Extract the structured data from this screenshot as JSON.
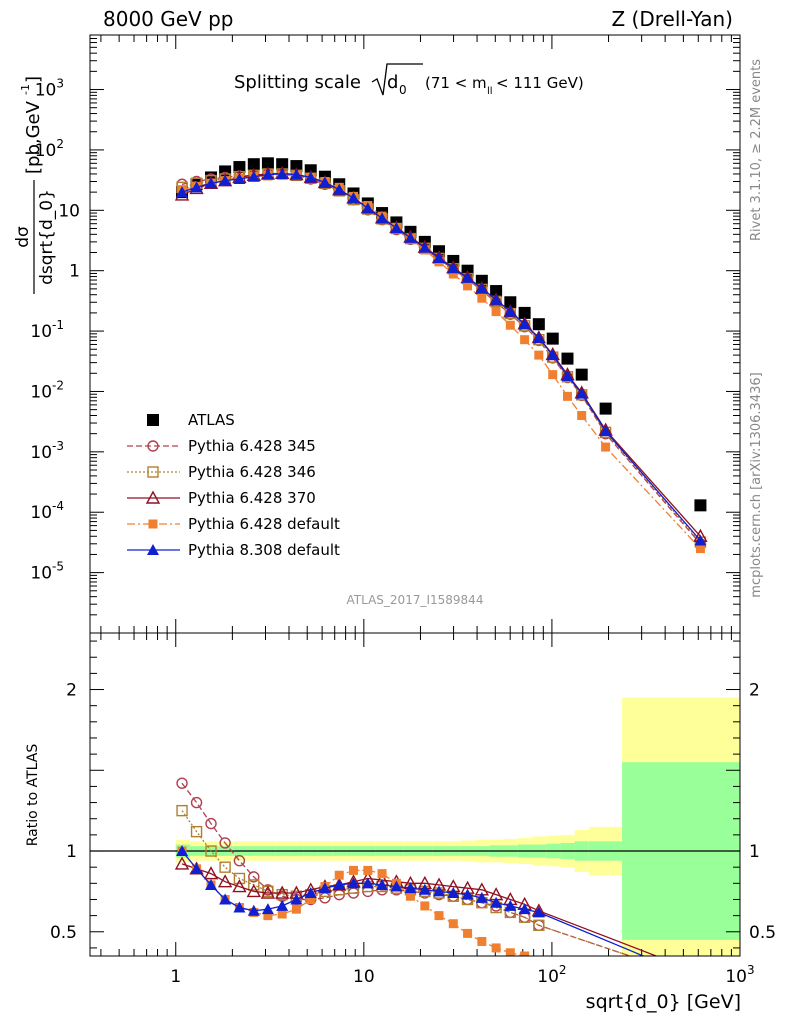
{
  "header": {
    "left": "8000 GeV pp",
    "right": "Z (Drell-Yan)"
  },
  "side_labels": {
    "top": "Rivet 3.1.10, ≥ 2.2M events",
    "bottom": "mcplots.cern.ch [arXiv:1306.3436]"
  },
  "analysis_id": "ATLAS_2017_I1589844",
  "chart_data": [
    {
      "type": "scatter",
      "panel": "main",
      "title": "Splitting scale √d0 (71 < mll < 111 GeV)",
      "title_parts": {
        "main": "Splitting scale",
        "sub": "0",
        "base": "d",
        "range": "(71 < m",
        "range_sub": "ll",
        "range_end": " < 111 GeV)"
      },
      "xlabel": "sqrt{d_0} [GeV]",
      "ylabel": "dσ/dsqrt{d_0} [pb,GeV⁻¹]",
      "ylabel_top": "dσ",
      "ylabel_bottom": "dsqrt{d_0}",
      "ylabel_unit": "[pb,GeV",
      "ylabel_unit_sup": "-1",
      "ylabel_unit_end": "]",
      "x_scale": "log",
      "y_scale": "log",
      "xlim": [
        0.35,
        1000
      ],
      "ylim": [
        1e-06,
        8000
      ],
      "x_ticks": [
        "1",
        "10",
        "10²",
        "10³"
      ],
      "y_ticks": [
        {
          "base": "10",
          "exp": "3",
          "v": 1000
        },
        {
          "base": "10",
          "exp": "2",
          "v": 100
        },
        {
          "base": "10",
          "exp": "",
          "v": 10
        },
        {
          "base": "1",
          "exp": "",
          "v": 1
        },
        {
          "base": "10",
          "exp": "-1",
          "v": 0.1
        },
        {
          "base": "10",
          "exp": "-2",
          "v": 0.01
        },
        {
          "base": "10",
          "exp": "-3",
          "v": 0.001
        },
        {
          "base": "10",
          "exp": "-4",
          "v": 0.0001
        },
        {
          "base": "10",
          "exp": "-5",
          "v": 1e-05
        }
      ],
      "legend_position": "bottom-left",
      "x": [
        1.08,
        1.29,
        1.54,
        1.83,
        2.18,
        2.6,
        3.09,
        3.68,
        4.38,
        5.22,
        6.21,
        7.4,
        8.81,
        10.5,
        12.5,
        14.9,
        17.7,
        21.1,
        25.1,
        29.9,
        35.6,
        42.4,
        50.5,
        60.1,
        71.6,
        85.2,
        101,
        121,
        144,
        193,
        616
      ],
      "series": [
        {
          "name": "ATLAS",
          "color": "#000000",
          "marker": "square-filled",
          "line": "none",
          "values": [
            20,
            27,
            35,
            44,
            52,
            58,
            60,
            58,
            54,
            46,
            36,
            27,
            19,
            13,
            9.0,
            6.3,
            4.4,
            3.0,
            2.1,
            1.45,
            1.0,
            0.68,
            0.46,
            0.3,
            0.2,
            0.13,
            0.075,
            0.035,
            0.019,
            0.0052,
            0.00013
          ]
        },
        {
          "name": "Pythia 6.428 345",
          "color": "#b04050",
          "marker": "circle-open",
          "line": "dashed",
          "values": [
            27,
            30,
            33,
            35,
            37,
            38,
            40,
            40,
            38,
            33,
            27,
            21,
            15,
            10.2,
            7.0,
            4.8,
            3.3,
            2.3,
            1.55,
            1.05,
            0.72,
            0.47,
            0.3,
            0.19,
            0.118,
            0.07,
            0.036,
            0.017,
            0.0086,
            0.002,
            3e-05
          ]
        },
        {
          "name": "Pythia 6.428 346",
          "color": "#b08030",
          "marker": "square-open",
          "line": "dotted",
          "values": [
            24,
            28,
            31,
            33,
            36,
            38,
            40,
            40,
            38,
            34,
            28,
            21,
            15,
            10.5,
            7.2,
            5.0,
            3.4,
            2.35,
            1.6,
            1.08,
            0.74,
            0.49,
            0.31,
            0.195,
            0.122,
            0.072,
            0.037,
            0.0175,
            0.0088,
            0.0021,
            3.2e-05
          ]
        },
        {
          "name": "Pythia 6.428 370",
          "color": "#901020",
          "marker": "triangle-open",
          "line": "solid",
          "values": [
            18,
            23,
            28,
            31,
            35,
            38,
            40,
            41,
            39,
            35,
            29,
            22,
            16,
            11.0,
            7.5,
            5.2,
            3.6,
            2.45,
            1.65,
            1.12,
            0.77,
            0.51,
            0.33,
            0.21,
            0.132,
            0.078,
            0.041,
            0.019,
            0.0095,
            0.0023,
            4e-05
          ]
        },
        {
          "name": "Pythia 6.428 default",
          "color": "#f08030",
          "marker": "square-filled-small",
          "line": "dashdot",
          "values": [
            22,
            25,
            28,
            31,
            34,
            36,
            37,
            38,
            38,
            35,
            30,
            24,
            17,
            12.0,
            8.0,
            5.2,
            3.4,
            2.2,
            1.4,
            0.88,
            0.56,
            0.35,
            0.21,
            0.125,
            0.072,
            0.04,
            0.019,
            0.0083,
            0.004,
            0.0012,
            2.5e-05
          ]
        },
        {
          "name": "Pythia 8.308 default",
          "color": "#1020d0",
          "marker": "triangle-filled",
          "line": "solid",
          "values": [
            20,
            24,
            28,
            31,
            33,
            36,
            39,
            40,
            39,
            35,
            29,
            22,
            16,
            10.8,
            7.4,
            5.1,
            3.5,
            2.4,
            1.62,
            1.1,
            0.76,
            0.51,
            0.33,
            0.21,
            0.13,
            0.077,
            0.04,
            0.018,
            0.0092,
            0.0022,
            3.4e-05
          ]
        }
      ]
    },
    {
      "type": "line",
      "panel": "ratio",
      "ylabel": "Ratio to ATLAS",
      "x_scale": "log",
      "y_scale": "linear",
      "xlim": [
        0.35,
        1000
      ],
      "ylim": [
        0.35,
        2.35
      ],
      "y_ticks": [
        "0.5",
        "1",
        "2"
      ],
      "band_colors": {
        "inner": "#99ff99",
        "outer": "#ffff99"
      },
      "band_edges": [
        1,
        1.19,
        1.42,
        1.69,
        2.0,
        2.38,
        2.84,
        3.38,
        4.03,
        4.8,
        5.7,
        6.8,
        8.1,
        9.6,
        11.5,
        13.7,
        16.3,
        19.4,
        23.1,
        27.5,
        32.7,
        39.0,
        46.4,
        55.3,
        65.8,
        78.4,
        93.3,
        111,
        132,
        157,
        236,
        1000
      ],
      "band_inner": [
        0.04,
        0.03,
        0.03,
        0.03,
        0.03,
        0.03,
        0.03,
        0.03,
        0.03,
        0.03,
        0.03,
        0.03,
        0.03,
        0.03,
        0.03,
        0.03,
        0.03,
        0.03,
        0.03,
        0.03,
        0.03,
        0.03,
        0.035,
        0.035,
        0.04,
        0.04,
        0.045,
        0.05,
        0.06,
        0.06,
        0.55
      ],
      "band_outer": [
        0.07,
        0.06,
        0.06,
        0.06,
        0.06,
        0.06,
        0.06,
        0.06,
        0.06,
        0.06,
        0.06,
        0.06,
        0.06,
        0.06,
        0.06,
        0.06,
        0.06,
        0.06,
        0.06,
        0.06,
        0.065,
        0.07,
        0.07,
        0.075,
        0.08,
        0.09,
        0.095,
        0.1,
        0.13,
        0.15,
        0.95
      ],
      "x": [
        1.08,
        1.29,
        1.54,
        1.83,
        2.18,
        2.6,
        3.09,
        3.68,
        4.38,
        5.22,
        6.21,
        7.4,
        8.81,
        10.5,
        12.5,
        14.9,
        17.7,
        21.1,
        25.1,
        29.9,
        35.6,
        42.4,
        50.5,
        60.1,
        71.6,
        85.2,
        1000
      ],
      "series": [
        {
          "name": "Pythia 6.428 345",
          "color": "#b04050",
          "marker": "circle-open",
          "line": "dashed",
          "values": [
            1.42,
            1.3,
            1.17,
            1.05,
            0.94,
            0.84,
            0.76,
            0.72,
            0.7,
            0.7,
            0.71,
            0.73,
            0.74,
            0.75,
            0.76,
            0.76,
            0.75,
            0.74,
            0.73,
            0.72,
            0.7,
            0.68,
            0.66,
            0.62,
            0.59,
            0.54,
            0.12
          ]
        },
        {
          "name": "Pythia 6.428 346",
          "color": "#b08030",
          "marker": "square-open",
          "line": "dotted",
          "values": [
            1.25,
            1.12,
            1.0,
            0.9,
            0.83,
            0.79,
            0.75,
            0.73,
            0.72,
            0.73,
            0.75,
            0.76,
            0.77,
            0.78,
            0.78,
            0.77,
            0.76,
            0.75,
            0.74,
            0.72,
            0.7,
            0.68,
            0.65,
            0.62,
            0.59,
            0.54,
            0.12
          ]
        },
        {
          "name": "Pythia 6.428 370",
          "color": "#901020",
          "marker": "triangle-open",
          "line": "solid",
          "values": [
            0.92,
            0.89,
            0.86,
            0.81,
            0.78,
            0.75,
            0.74,
            0.74,
            0.74,
            0.76,
            0.78,
            0.79,
            0.81,
            0.83,
            0.82,
            0.81,
            0.8,
            0.8,
            0.79,
            0.78,
            0.77,
            0.76,
            0.73,
            0.7,
            0.67,
            0.63,
            0.15
          ]
        },
        {
          "name": "Pythia 6.428 default",
          "color": "#f08030",
          "marker": "square-filled-small",
          "line": "dashdot",
          "values": [
            1.0,
            0.89,
            0.79,
            0.7,
            0.65,
            0.62,
            0.6,
            0.61,
            0.64,
            0.7,
            0.78,
            0.85,
            0.88,
            0.88,
            0.86,
            0.8,
            0.72,
            0.66,
            0.6,
            0.55,
            0.49,
            0.44,
            0.4,
            0.37,
            0.35,
            0.32,
            0.08
          ]
        },
        {
          "name": "Pythia 8.308 default",
          "color": "#1020d0",
          "marker": "triangle-filled",
          "line": "solid",
          "values": [
            1.0,
            0.89,
            0.79,
            0.7,
            0.65,
            0.63,
            0.64,
            0.66,
            0.7,
            0.74,
            0.77,
            0.79,
            0.8,
            0.8,
            0.79,
            0.78,
            0.77,
            0.76,
            0.75,
            0.74,
            0.73,
            0.71,
            0.68,
            0.66,
            0.64,
            0.62,
            0.1
          ]
        }
      ]
    }
  ]
}
